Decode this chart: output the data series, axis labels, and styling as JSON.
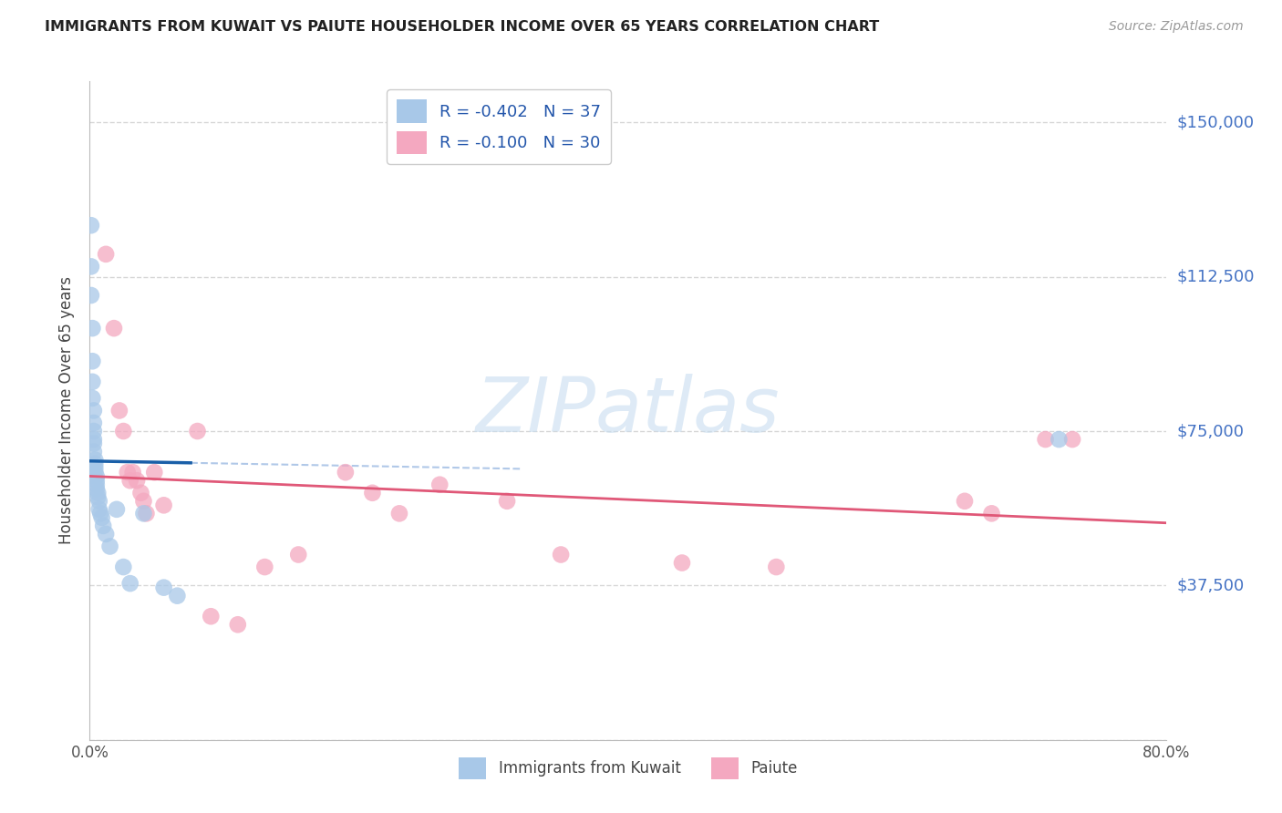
{
  "title": "IMMIGRANTS FROM KUWAIT VS PAIUTE HOUSEHOLDER INCOME OVER 65 YEARS CORRELATION CHART",
  "source": "Source: ZipAtlas.com",
  "ylabel": "Householder Income Over 65 years",
  "xlim": [
    0.0,
    0.8
  ],
  "ylim": [
    0,
    160000
  ],
  "yticks": [
    0,
    37500,
    75000,
    112500,
    150000
  ],
  "ytick_labels": [
    "",
    "$37,500",
    "$75,000",
    "$112,500",
    "$150,000"
  ],
  "xticks": [
    0.0,
    0.1,
    0.2,
    0.3,
    0.4,
    0.5,
    0.6,
    0.7,
    0.8
  ],
  "legend_entry_blue": "R = -0.402   N = 37",
  "legend_entry_pink": "R = -0.100   N = 30",
  "legend_labels_bottom": [
    "Immigrants from Kuwait",
    "Paiute"
  ],
  "blue_color": "#a8c8e8",
  "pink_color": "#f4a8c0",
  "blue_line_color": "#1a5fa8",
  "pink_line_color": "#e05878",
  "gray_dash_color": "#b0c8e8",
  "background_color": "#ffffff",
  "watermark_color": "#c8ddf0",
  "kuwait_x": [
    0.001,
    0.001,
    0.001,
    0.002,
    0.002,
    0.002,
    0.002,
    0.003,
    0.003,
    0.003,
    0.003,
    0.003,
    0.003,
    0.004,
    0.004,
    0.004,
    0.004,
    0.005,
    0.005,
    0.005,
    0.005,
    0.006,
    0.006,
    0.007,
    0.007,
    0.008,
    0.009,
    0.01,
    0.012,
    0.015,
    0.02,
    0.025,
    0.03,
    0.04,
    0.055,
    0.065,
    0.72
  ],
  "kuwait_y": [
    125000,
    115000,
    108000,
    100000,
    92000,
    87000,
    83000,
    80000,
    77000,
    75000,
    73000,
    72000,
    70000,
    68000,
    67000,
    66000,
    65000,
    64000,
    63000,
    62000,
    61000,
    60000,
    59000,
    58000,
    56000,
    55000,
    54000,
    52000,
    50000,
    47000,
    56000,
    42000,
    38000,
    55000,
    37000,
    35000,
    73000
  ],
  "paiute_x": [
    0.012,
    0.018,
    0.022,
    0.025,
    0.028,
    0.03,
    0.032,
    0.035,
    0.038,
    0.04,
    0.042,
    0.048,
    0.055,
    0.08,
    0.09,
    0.11,
    0.13,
    0.155,
    0.19,
    0.21,
    0.23,
    0.26,
    0.31,
    0.35,
    0.44,
    0.51,
    0.65,
    0.67,
    0.71,
    0.73
  ],
  "paiute_y": [
    118000,
    100000,
    80000,
    75000,
    65000,
    63000,
    65000,
    63000,
    60000,
    58000,
    55000,
    65000,
    57000,
    75000,
    30000,
    28000,
    42000,
    45000,
    65000,
    60000,
    55000,
    62000,
    58000,
    45000,
    43000,
    42000,
    58000,
    55000,
    73000,
    73000
  ]
}
